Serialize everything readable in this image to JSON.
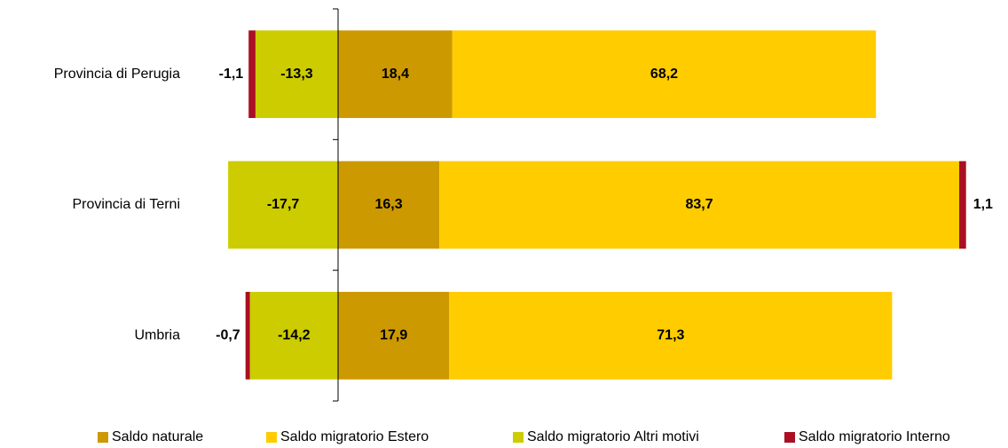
{
  "chart_data": {
    "type": "stacked-bar-horizontal",
    "categories": [
      "Provincia di Perugia",
      "Provincia di Terni",
      "Umbria"
    ],
    "series": [
      {
        "name": "Saldo naturale",
        "color": "#cc9900",
        "values": [
          18.4,
          16.3,
          17.9
        ],
        "value_labels": [
          "18,4",
          "16,3",
          "17,9"
        ]
      },
      {
        "name": "Saldo migratorio Estero",
        "color": "#ffcc00",
        "values": [
          68.2,
          83.7,
          71.3
        ],
        "value_labels": [
          "68,2",
          "83,7",
          "71,3"
        ]
      },
      {
        "name": "Saldo migratorio Altri motivi",
        "color": "#cccc00",
        "values": [
          -13.3,
          -17.7,
          -14.2
        ],
        "value_labels": [
          "-13,3",
          "-17,7",
          "-14,2"
        ]
      },
      {
        "name": "Saldo migratorio Interno",
        "color": "#aa0f22",
        "values": [
          -1.1,
          1.1,
          -0.7
        ],
        "value_labels": [
          "-1,1",
          "1,1",
          "-0,7"
        ]
      }
    ],
    "xlim": [
      -20,
      105
    ],
    "legend": "bottom"
  }
}
